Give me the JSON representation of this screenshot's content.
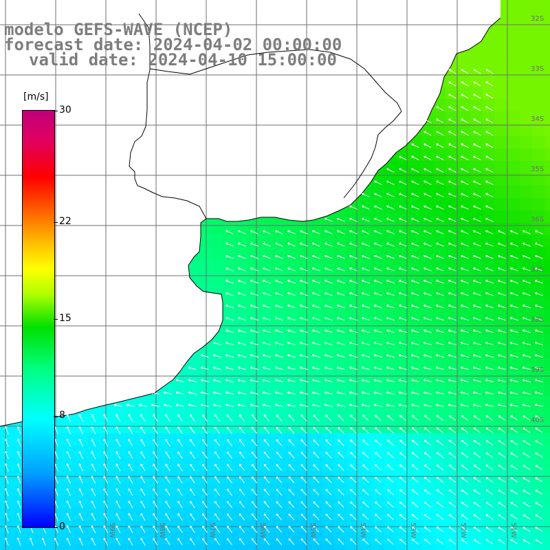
{
  "title": {
    "line1": "modelo GEFS-WAVE (NCEP)",
    "line2": "forecast date: 2024-04-02 00:00:00",
    "line3": "valid date: 2024-04-10 15:00:00"
  },
  "colorbar": {
    "unit": "[m/s]",
    "min": 0,
    "max": 30,
    "ticks": [
      {
        "value": 30,
        "label": "30"
      },
      {
        "value": 22,
        "label": "22"
      },
      {
        "value": 15,
        "label": "15"
      },
      {
        "value": 8,
        "label": "8"
      },
      {
        "value": 0,
        "label": "0"
      }
    ]
  },
  "map": {
    "variable": "wind speed and direction",
    "grid_lines": true,
    "longitude_labels": [
      "59W",
      "58W",
      "57W",
      "56W",
      "55W",
      "54W",
      "53W",
      "52W",
      "51W"
    ],
    "latitude_labels": [
      "32S",
      "33S",
      "34S",
      "35S",
      "36S",
      "37S",
      "38S",
      "39S",
      "40S"
    ],
    "colors": {
      "land": "#ffffff",
      "coast": "#000000",
      "grid": "#6e6e6e",
      "arrow": "#ffffff",
      "title_text": "#7d7d7d"
    }
  }
}
